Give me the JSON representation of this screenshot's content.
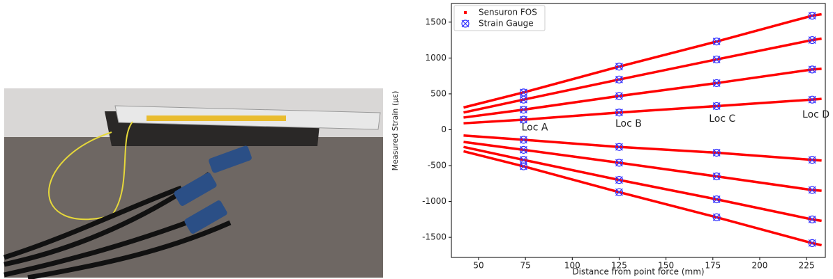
{
  "chart_data": {
    "type": "scatter",
    "xlabel": "Distance from point force (mm)",
    "ylabel": "Measured Strain (με)",
    "xlim": [
      35.5,
      235
    ],
    "xticks": [
      50,
      75,
      100,
      125,
      150,
      175,
      200,
      225
    ],
    "ylim": [
      -1780,
      1760
    ],
    "yticks": [
      -1500,
      -1000,
      -500,
      0,
      500,
      1000,
      1500
    ],
    "legend": "upper left",
    "annotations": [
      "Loc A",
      "Loc B",
      "Loc C",
      "Loc D"
    ],
    "series": [
      {
        "name": "Sensuron FOS",
        "color": "#ff0000",
        "marker": "square",
        "lines": [
          {
            "x": [
              42,
              74,
              125,
              177,
              228,
              233
            ],
            "values": [
              310,
              520,
              880,
              1230,
              1590,
              1610
            ]
          },
          {
            "x": [
              42,
              74,
              125,
              177,
              228,
              233
            ],
            "values": [
              240,
              420,
              700,
              980,
              1250,
              1270
            ]
          },
          {
            "x": [
              42,
              74,
              125,
              177,
              228,
              233
            ],
            "values": [
              170,
              280,
              470,
              650,
              840,
              850
            ]
          },
          {
            "x": [
              42,
              74,
              125,
              177,
              228,
              233
            ],
            "values": [
              90,
              140,
              240,
              330,
              420,
              430
            ]
          },
          {
            "x": [
              42,
              74,
              125,
              177,
              228,
              233
            ],
            "values": [
              -80,
              -140,
              -240,
              -320,
              -420,
              -430
            ]
          },
          {
            "x": [
              42,
              74,
              125,
              177,
              228,
              233
            ],
            "values": [
              -170,
              -280,
              -460,
              -650,
              -840,
              -850
            ]
          },
          {
            "x": [
              42,
              74,
              125,
              177,
              228,
              233
            ],
            "values": [
              -240,
              -420,
              -700,
              -970,
              -1250,
              -1270
            ]
          },
          {
            "x": [
              42,
              74,
              125,
              177,
              228,
              233
            ],
            "values": [
              -300,
              -510,
              -870,
              -1220,
              -1580,
              -1610
            ]
          }
        ]
      },
      {
        "name": "Strain Gauge",
        "color": "#3333ff",
        "marker": "X",
        "x": [
          74,
          74,
          74,
          74,
          74,
          74,
          74,
          74,
          125,
          125,
          125,
          125,
          125,
          125,
          125,
          125,
          177,
          177,
          177,
          177,
          177,
          177,
          177,
          177,
          228,
          228,
          228,
          228,
          228,
          228,
          228,
          228
        ],
        "values": [
          520,
          420,
          280,
          140,
          -140,
          -280,
          -420,
          -510,
          880,
          700,
          470,
          240,
          -240,
          -460,
          -700,
          -870,
          1230,
          980,
          650,
          330,
          -320,
          -650,
          -970,
          -1220,
          1590,
          1250,
          840,
          420,
          -420,
          -840,
          -1250,
          -1580
        ]
      }
    ]
  }
}
